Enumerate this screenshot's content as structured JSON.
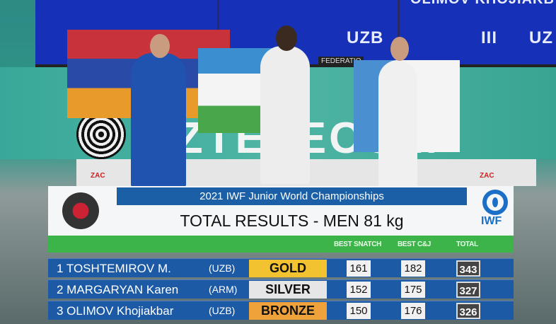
{
  "background": {
    "screen_texts": [
      "UZB",
      "III",
      "UZ",
      "OLIMOV KHOJIAKB"
    ],
    "federation_text": "FEDERATIO",
    "sponsor_text": "UZTELECOM",
    "podium_brand": "ZAC"
  },
  "overlay": {
    "event_title": "2021 IWF Junior World Championships",
    "results_title": "TOTAL RESULTS - MEN 81 kg",
    "iwf_logo_text": "IWF",
    "columns": {
      "snatch": "BEST SNATCH",
      "cj": "BEST C&J",
      "total": "TOTAL"
    },
    "rows": [
      {
        "rank_name": "1 TOSHTEMIROV M.",
        "country": "(UZB)",
        "medal": "GOLD",
        "medal_color": "#f2c230",
        "snatch": "161",
        "cj": "182",
        "total": "343"
      },
      {
        "rank_name": "2 MARGARYAN Karen",
        "country": "(ARM)",
        "medal": "SILVER",
        "medal_color": "#e6e6e6",
        "snatch": "152",
        "cj": "175",
        "total": "327"
      },
      {
        "rank_name": "3 OLIMOV Khojiakbar",
        "country": "(UZB)",
        "medal": "BRONZE",
        "medal_color": "#f0a23a",
        "snatch": "150",
        "cj": "176",
        "total": "326"
      }
    ]
  }
}
